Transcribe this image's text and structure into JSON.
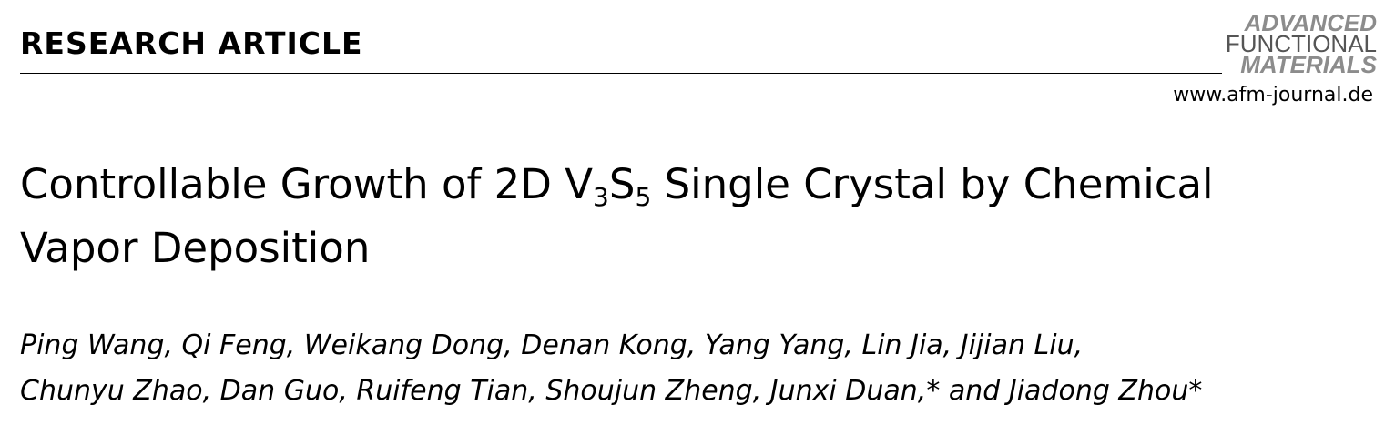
{
  "header": {
    "section_label": "RESEARCH ARTICLE",
    "journal_logo": {
      "line1": "ADVANCED",
      "line2": "FUNCTIONAL",
      "line3": "MATERIALS"
    },
    "journal_url": "www.afm-journal.de"
  },
  "article": {
    "title_before": "Controllable Growth of 2D V",
    "sub1": "3",
    "title_mid": "S",
    "sub2": "5",
    "title_after": " Single Crystal by Chemical",
    "title_line2": "Vapor Deposition",
    "authors_line1": "Ping Wang, Qi Feng, Weikang Dong, Denan Kong, Yang Yang, Lin Jia, Jijian Liu,",
    "authors_line2": "Chunyu Zhao, Dan Guo, Ruifeng Tian, Shoujun Zheng, Junxi Duan,* and Jiadong Zhou*"
  }
}
